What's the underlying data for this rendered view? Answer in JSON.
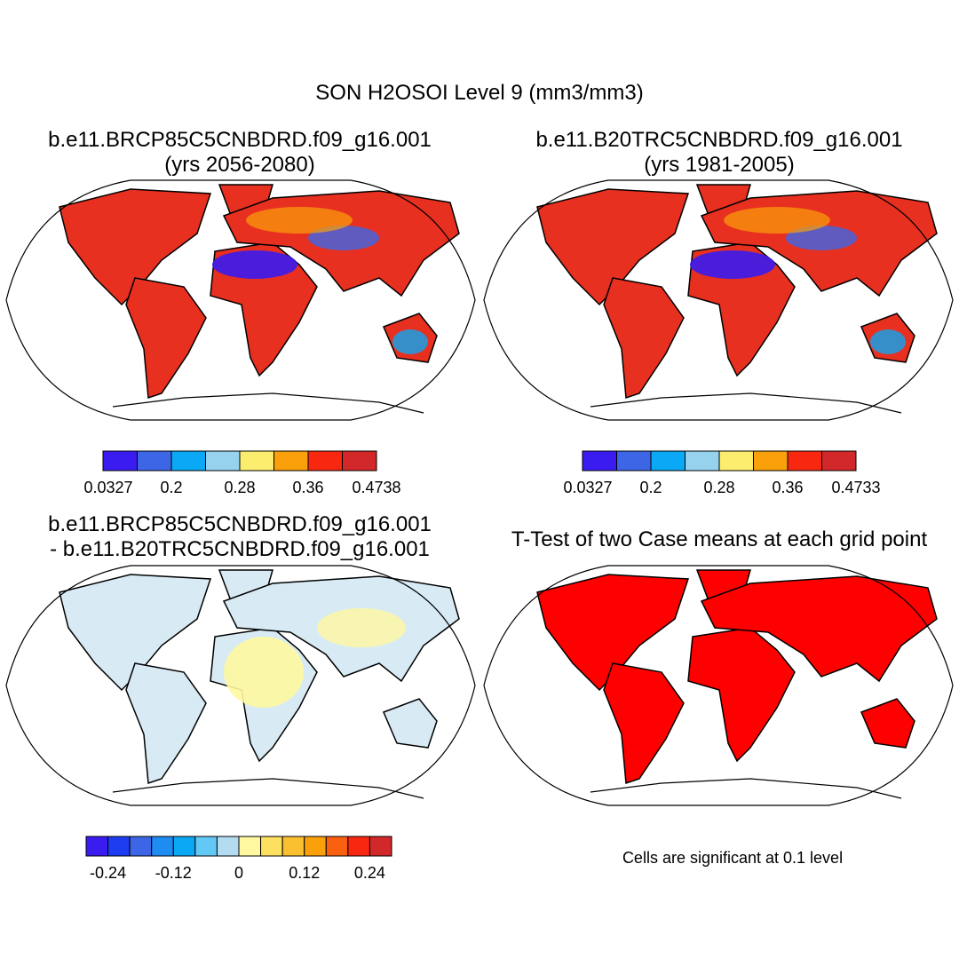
{
  "title": "SON H2OSOI Level 9 (mm3/mm3)",
  "panels": [
    {
      "title": [
        "b.e11.BRCP85C5CNBDRD.f09_g16.001",
        "(yrs 2056-2080)"
      ],
      "colorbar": {
        "colors": [
          "#3a1cf0",
          "#3d66e6",
          "#0aa8f5",
          "#96d2ee",
          "#fbee6e",
          "#f9a00a",
          "#f82810",
          "#d2282a"
        ],
        "labels": [
          "0.0327",
          "0.2",
          "0.28",
          "0.36",
          "0.4738"
        ]
      }
    },
    {
      "title": [
        "b.e11.B20TRC5CNBDRD.f09_g16.001",
        "(yrs 1981-2005)"
      ],
      "colorbar": {
        "colors": [
          "#3a1cf0",
          "#3d66e6",
          "#0aa8f5",
          "#96d2ee",
          "#fbee6e",
          "#f9a00a",
          "#f82810",
          "#d2282a"
        ],
        "labels": [
          "0.0327",
          "0.2",
          "0.28",
          "0.36",
          "0.4733"
        ]
      }
    },
    {
      "title": [
        "b.e11.BRCP85C5CNBDRD.f09_g16.001",
        "- b.e11.B20TRC5CNBDRD.f09_g16.001"
      ],
      "colorbar": {
        "colors": [
          "#3a1cf0",
          "#1e3cf0",
          "#3d66e6",
          "#1e8cf0",
          "#0aa8f5",
          "#64c8f5",
          "#b4dcf0",
          "#fff8a0",
          "#fde060",
          "#fbc030",
          "#f9a00a",
          "#f86010",
          "#f82810",
          "#d2282a"
        ],
        "labels": [
          "-0.24",
          "-0.12",
          "0",
          "0.12",
          "0.24"
        ]
      }
    },
    {
      "title": [
        "T-Test of two Case means at each grid point"
      ],
      "note": "Cells are significant at 0.1 level"
    }
  ]
}
